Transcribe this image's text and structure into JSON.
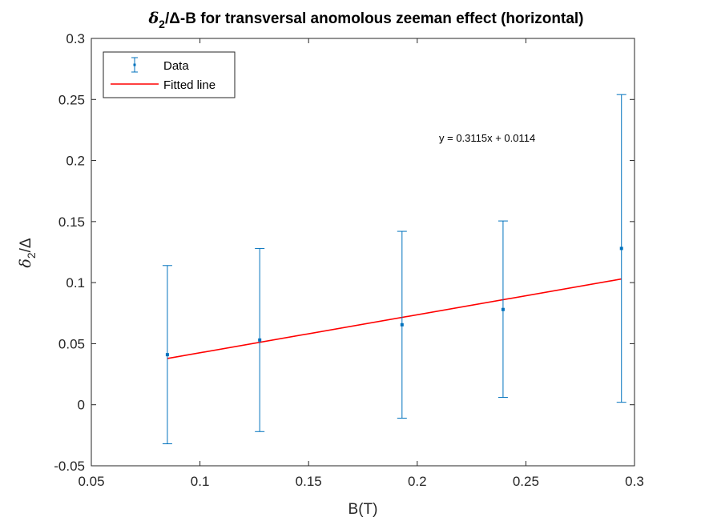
{
  "chart_data": {
    "type": "scatter",
    "title_symbol_delta_small": "δ",
    "title_subscript": "2",
    "title_symbol_delta_big": "/Δ",
    "title_rest": "-B for transversal anomolous zeeman effect (horizontal)",
    "xlabel": "B(T)",
    "ylabel_symbol": "δ",
    "ylabel_subscript": "2",
    "ylabel_rest": "/Δ",
    "xlim": [
      0.05,
      0.3
    ],
    "ylim": [
      -0.05,
      0.3
    ],
    "x_ticks": [
      "0.05",
      "0.1",
      "0.15",
      "0.2",
      "0.25",
      "0.3"
    ],
    "y_ticks": [
      "-0.05",
      "0",
      "0.05",
      "0.1",
      "0.15",
      "0.2",
      "0.25",
      "0.3"
    ],
    "grid": false,
    "legend_position": "top-left",
    "series": [
      {
        "name": "Data",
        "kind": "errorbar",
        "color": "#0072BD",
        "x": [
          0.085,
          0.1275,
          0.193,
          0.2395,
          0.294
        ],
        "y": [
          0.041,
          0.053,
          0.0655,
          0.078,
          0.128
        ],
        "err_low": [
          0.073,
          0.075,
          0.0765,
          0.072,
          0.126
        ],
        "err_high": [
          0.073,
          0.075,
          0.0765,
          0.0725,
          0.126
        ]
      },
      {
        "name": "Fitted line",
        "kind": "line",
        "color": "#FF0000",
        "slope": 0.3115,
        "intercept": 0.0114,
        "x_range": [
          0.085,
          0.294
        ]
      }
    ],
    "annotation": "y = 0.3115x + 0.0114"
  }
}
